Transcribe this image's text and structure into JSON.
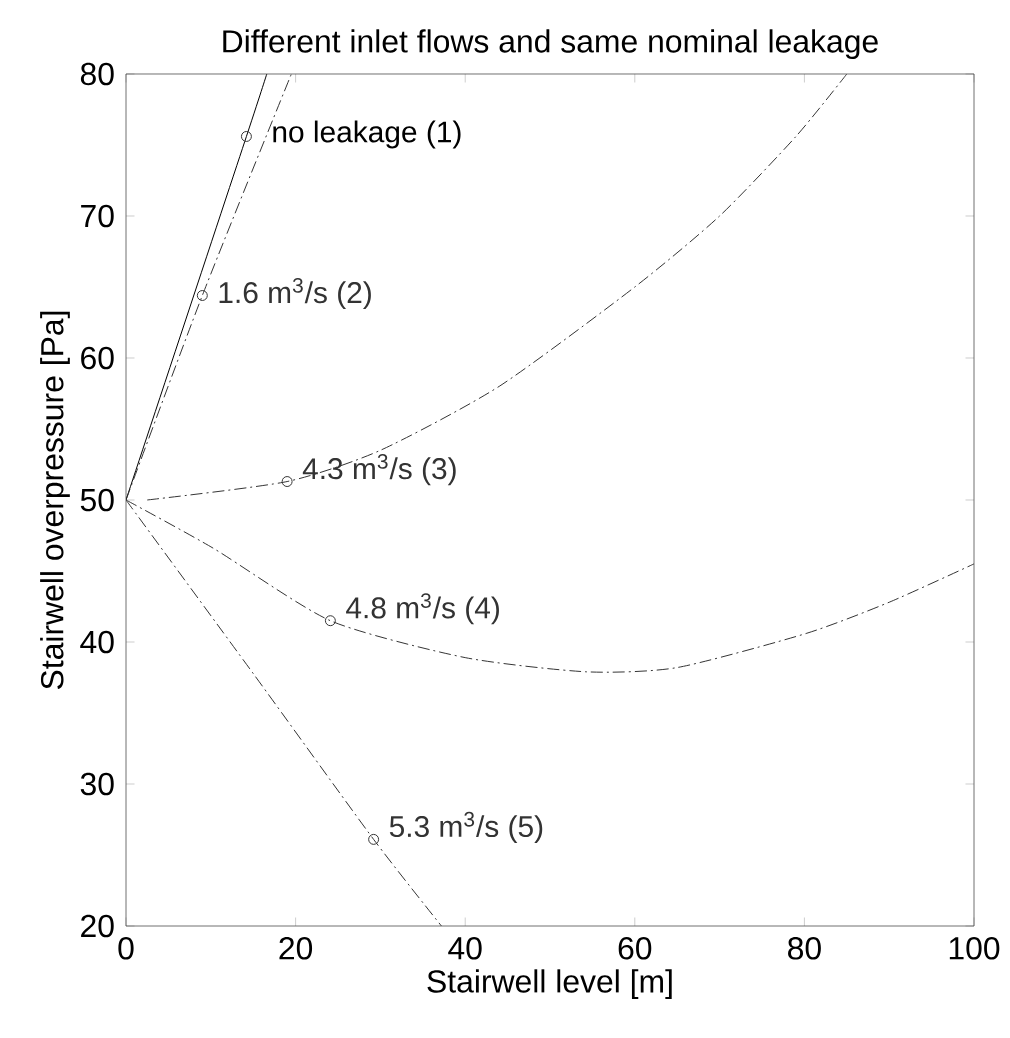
{
  "chart_data": {
    "type": "line",
    "title": "Different inlet flows and same nominal leakage",
    "xlabel": "Stairwell level [m]",
    "ylabel": "Stairwell overpressure [Pa]",
    "xlim": [
      0,
      100
    ],
    "ylim": [
      20,
      80
    ],
    "xticks": [
      0,
      20,
      40,
      60,
      80,
      100
    ],
    "yticks": [
      20,
      30,
      40,
      50,
      60,
      70,
      80
    ],
    "grid": false,
    "legend": false,
    "series": [
      {
        "name": "no leakage  (1)",
        "color": "#000000",
        "line_style": "solid",
        "x": [
          0,
          14.2,
          16.6
        ],
        "values": [
          50,
          75.6,
          80
        ]
      },
      {
        "name": "1.6 m$^{3}$/s  (2)",
        "color": "#333333",
        "line_style": "dashed",
        "x": [
          0,
          9,
          19.5
        ],
        "values": [
          50,
          64.4,
          80
        ]
      },
      {
        "name": "4.3 m$^{3}$/s  (3)",
        "color": "#333333",
        "line_style": "dashed",
        "x": [
          2.5,
          19,
          30,
          44,
          60,
          70,
          79,
          85
        ],
        "values": [
          50,
          51.3,
          53.5,
          58,
          65,
          70,
          75.6,
          80
        ]
      },
      {
        "name": "4.8 m$^{3}$/s  (4)",
        "color": "#333333",
        "line_style": "dashed",
        "x": [
          0,
          10.3,
          24.1,
          40,
          54.3,
          65,
          80.2,
          90,
          100
        ],
        "values": [
          50,
          46.6,
          41.5,
          38.9,
          37.9,
          38.2,
          40.6,
          42.8,
          45.5
        ]
      },
      {
        "name": "5.3 m$^{3}$/s  (5)",
        "color": "#333333",
        "line_style": "dashed",
        "x": [
          0,
          15.1,
          29.2,
          37.2
        ],
        "values": [
          50,
          37.7,
          26.1,
          20
        ]
      },
      {
        "type": "scatter",
        "color": "#333333",
        "marker": "circle",
        "x": [
          14.2,
          9,
          19,
          24.1,
          29.2
        ],
        "values": [
          75.6,
          64.4,
          51.3,
          41.5,
          26.1
        ]
      }
    ]
  }
}
